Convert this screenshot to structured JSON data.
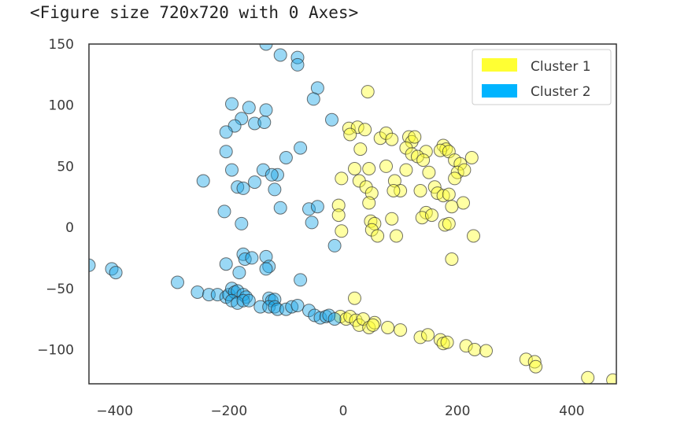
{
  "caption": "<Figure size 720x720 with 0 Axes>",
  "chart_data": {
    "type": "scatter",
    "title": "",
    "xlabel": "",
    "ylabel": "",
    "xlim": [
      -445,
      478
    ],
    "ylim": [
      -128,
      150
    ],
    "xticks": [
      -400,
      -200,
      0,
      200,
      400
    ],
    "yticks": [
      -100,
      -50,
      0,
      50,
      100,
      150
    ],
    "xtick_labels": [
      "−400",
      "−200",
      "0",
      "200",
      "400"
    ],
    "ytick_labels": [
      "−100",
      "−50",
      "0",
      "50",
      "100",
      "150"
    ],
    "grid": false,
    "legend_position": "top-right",
    "series": [
      {
        "name": "Cluster 1",
        "color": "#ffff33",
        "legend_color": "#ffff33",
        "points": [
          [
            43,
            111
          ],
          [
            10,
            81
          ],
          [
            25,
            82
          ],
          [
            38,
            80
          ],
          [
            12,
            76
          ],
          [
            65,
            73
          ],
          [
            75,
            77
          ],
          [
            85,
            72
          ],
          [
            115,
            74
          ],
          [
            120,
            70
          ],
          [
            125,
            74
          ],
          [
            110,
            65
          ],
          [
            120,
            60
          ],
          [
            145,
            62
          ],
          [
            130,
            58
          ],
          [
            140,
            55
          ],
          [
            175,
            67
          ],
          [
            180,
            64
          ],
          [
            170,
            63
          ],
          [
            185,
            62
          ],
          [
            195,
            55
          ],
          [
            205,
            52
          ],
          [
            225,
            57
          ],
          [
            200,
            45
          ],
          [
            212,
            47
          ],
          [
            195,
            40
          ],
          [
            30,
            64
          ],
          [
            20,
            48
          ],
          [
            45,
            48
          ],
          [
            75,
            50
          ],
          [
            110,
            47
          ],
          [
            150,
            45
          ],
          [
            28,
            38
          ],
          [
            40,
            33
          ],
          [
            50,
            28
          ],
          [
            -3,
            40
          ],
          [
            90,
            38
          ],
          [
            100,
            30
          ],
          [
            88,
            30
          ],
          [
            135,
            30
          ],
          [
            160,
            33
          ],
          [
            165,
            28
          ],
          [
            175,
            26
          ],
          [
            185,
            27
          ],
          [
            210,
            20
          ],
          [
            -8,
            18
          ],
          [
            -8,
            10
          ],
          [
            45,
            20
          ],
          [
            145,
            12
          ],
          [
            138,
            8
          ],
          [
            155,
            10
          ],
          [
            190,
            17
          ],
          [
            48,
            5
          ],
          [
            55,
            3
          ],
          [
            85,
            7
          ],
          [
            -3,
            -3
          ],
          [
            50,
            -2
          ],
          [
            60,
            -7
          ],
          [
            93,
            -7
          ],
          [
            178,
            2
          ],
          [
            185,
            3
          ],
          [
            228,
            -7
          ],
          [
            190,
            -26
          ],
          [
            20,
            -58
          ],
          [
            -5,
            -73
          ],
          [
            5,
            -75
          ],
          [
            12,
            -73
          ],
          [
            22,
            -76
          ],
          [
            28,
            -80
          ],
          [
            35,
            -75
          ],
          [
            45,
            -82
          ],
          [
            55,
            -78
          ],
          [
            52,
            -80
          ],
          [
            78,
            -82
          ],
          [
            100,
            -84
          ],
          [
            135,
            -90
          ],
          [
            148,
            -88
          ],
          [
            170,
            -92
          ],
          [
            175,
            -95
          ],
          [
            182,
            -94
          ],
          [
            215,
            -97
          ],
          [
            230,
            -100
          ],
          [
            250,
            -101
          ],
          [
            320,
            -108
          ],
          [
            335,
            -110
          ],
          [
            337,
            -114
          ],
          [
            428,
            -123
          ],
          [
            472,
            -125
          ]
        ]
      },
      {
        "name": "Cluster 2",
        "color": "#1ea8e8",
        "legend_color": "#00b4ff",
        "points": [
          [
            -135,
            150
          ],
          [
            -110,
            141
          ],
          [
            -80,
            139
          ],
          [
            -80,
            133
          ],
          [
            -45,
            114
          ],
          [
            -52,
            105
          ],
          [
            -20,
            88
          ],
          [
            -195,
            101
          ],
          [
            -165,
            98
          ],
          [
            -135,
            96
          ],
          [
            -178,
            89
          ],
          [
            -155,
            85
          ],
          [
            -138,
            86
          ],
          [
            -190,
            83
          ],
          [
            -205,
            78
          ],
          [
            -75,
            65
          ],
          [
            -205,
            62
          ],
          [
            -100,
            57
          ],
          [
            -195,
            47
          ],
          [
            -140,
            47
          ],
          [
            -115,
            43
          ],
          [
            -125,
            43
          ],
          [
            -245,
            38
          ],
          [
            -155,
            37
          ],
          [
            -185,
            33
          ],
          [
            -175,
            32
          ],
          [
            -120,
            31
          ],
          [
            -110,
            16
          ],
          [
            -60,
            15
          ],
          [
            -45,
            17
          ],
          [
            -208,
            13
          ],
          [
            -55,
            4
          ],
          [
            -178,
            3
          ],
          [
            -15,
            -15
          ],
          [
            -175,
            -22
          ],
          [
            -172,
            -26
          ],
          [
            -160,
            -25
          ],
          [
            -135,
            -24
          ],
          [
            -205,
            -30
          ],
          [
            -130,
            -32
          ],
          [
            -135,
            -34
          ],
          [
            -182,
            -37
          ],
          [
            -75,
            -43
          ],
          [
            -445,
            -31
          ],
          [
            -405,
            -34
          ],
          [
            -398,
            -37
          ],
          [
            -290,
            -45
          ],
          [
            -255,
            -53
          ],
          [
            -235,
            -55
          ],
          [
            -220,
            -55
          ],
          [
            -205,
            -57
          ],
          [
            -200,
            -55
          ],
          [
            -195,
            -50
          ],
          [
            -190,
            -53
          ],
          [
            -185,
            -52
          ],
          [
            -175,
            -55
          ],
          [
            -170,
            -57
          ],
          [
            -195,
            -60
          ],
          [
            -185,
            -62
          ],
          [
            -175,
            -60
          ],
          [
            -165,
            -60
          ],
          [
            -130,
            -58
          ],
          [
            -125,
            -60
          ],
          [
            -120,
            -59
          ],
          [
            -145,
            -65
          ],
          [
            -130,
            -65
          ],
          [
            -120,
            -65
          ],
          [
            -115,
            -67
          ],
          [
            -100,
            -67
          ],
          [
            -90,
            -65
          ],
          [
            -80,
            -64
          ],
          [
            -60,
            -68
          ],
          [
            -50,
            -72
          ],
          [
            -40,
            -74
          ],
          [
            -30,
            -73
          ],
          [
            -25,
            -72
          ],
          [
            -15,
            -75
          ]
        ]
      }
    ]
  }
}
